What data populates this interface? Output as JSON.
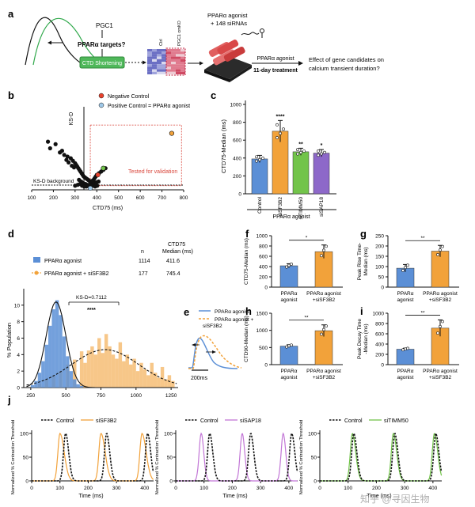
{
  "panel_letters": {
    "a": "a",
    "b": "b",
    "c": "c",
    "d": "d",
    "e": "e",
    "f": "f",
    "g": "g",
    "h": "h",
    "i": "i",
    "j": "j"
  },
  "panel_a": {
    "pgc1": "PGC1",
    "ppar_targets": "PPARα targets?",
    "ctd_shortening": "CTD Shortening",
    "heatmap_label_ctrl": "Ctrl",
    "heatmap_label_ko": "PGC1 cmKO",
    "agonist_sirna_line1": "PPARα agonist",
    "agonist_sirna_line2": "+ 148 siRNAs",
    "treatment_top": "PPARα agonist",
    "treatment_bottom": "11-day treatment",
    "question_line1": "Effect of gene candidates on",
    "question_line2": "calcium transient duration?"
  },
  "panel_b": {
    "legend_neg": "Negative Control",
    "legend_pos": "Positive Control = PPARα agonist",
    "ylabel": "KS-D",
    "xlabel": "CTD75 (ms)",
    "background_label": "KS-D background",
    "validation_label": "Tested for validation",
    "colors": {
      "neg": "#e8412c",
      "pos": "#9fc8e8",
      "highlight_orange": "#f2a23a",
      "highlight_green": "#72c44a"
    },
    "chart_data": {
      "type": "scatter",
      "title": "",
      "xlabel": "CTD75 (ms)",
      "ylabel": "KS-D",
      "xlim": [
        100,
        800
      ],
      "ylim": [
        0,
        1
      ],
      "x_ticks": [
        "100",
        "200",
        "300",
        "400",
        "500",
        "600",
        "700",
        "800"
      ],
      "points_x": [
        175,
        210,
        185,
        230,
        250,
        265,
        280,
        290,
        300,
        305,
        310,
        315,
        320,
        325,
        330,
        335,
        340,
        345,
        350,
        355,
        360,
        365,
        370,
        375,
        380,
        385,
        390,
        395,
        400,
        410,
        420,
        430,
        440,
        270,
        285,
        295,
        240,
        260,
        318,
        328,
        338,
        348,
        358,
        368,
        378,
        388,
        398,
        408,
        300,
        312,
        322,
        332,
        342,
        352,
        362,
        372,
        382,
        392,
        402
      ],
      "points_y": [
        0.58,
        0.55,
        0.5,
        0.45,
        0.42,
        0.4,
        0.38,
        0.35,
        0.32,
        0.3,
        0.28,
        0.26,
        0.24,
        0.22,
        0.2,
        0.18,
        0.16,
        0.15,
        0.14,
        0.13,
        0.12,
        0.11,
        0.1,
        0.1,
        0.11,
        0.12,
        0.14,
        0.16,
        0.18,
        0.2,
        0.22,
        0.24,
        0.26,
        0.33,
        0.29,
        0.27,
        0.47,
        0.36,
        0.12,
        0.1,
        0.08,
        0.07,
        0.06,
        0.06,
        0.07,
        0.08,
        0.09,
        0.1,
        0.05,
        0.06,
        0.07,
        0.05,
        0.04,
        0.04,
        0.05,
        0.06,
        0.05,
        0.04,
        0.05
      ],
      "negative_control": {
        "x": 405,
        "y": 0.18
      },
      "positive_control": {
        "x": 370,
        "y": 0.02
      },
      "highlighted": [
        {
          "x": 745,
          "y": 0.68,
          "color": "orange"
        },
        {
          "x": 430,
          "y": 0.26,
          "color": "green"
        }
      ],
      "background_threshold_y": 0.05,
      "validation_box": {
        "x_from": 370,
        "x_to": 790,
        "y_from": 0.05,
        "y_to": 0.78
      }
    }
  },
  "panel_c": {
    "ylabel": "CTD75-Median (ms)",
    "group_label": "PPARα agonist",
    "chart_data": {
      "type": "bar",
      "categories": [
        "Control",
        "siSF3B2",
        "siTIMM50",
        "siSAP18"
      ],
      "values": [
        390,
        700,
        470,
        455
      ],
      "errors": [
        40,
        120,
        40,
        40
      ],
      "colors": [
        "#5b8fd6",
        "#f2a23a",
        "#72c44a",
        "#8d68c9"
      ],
      "significance": [
        "",
        "****",
        "**",
        "*"
      ],
      "ylim": [
        0,
        1000
      ],
      "y_ticks": [
        "0",
        "200",
        "400",
        "600",
        "800",
        "1000"
      ]
    }
  },
  "panel_d": {
    "header_n": "n",
    "header_ctd": "CTD75",
    "header_median": "Median (ms)",
    "rows": [
      {
        "label": "PPARα agonist",
        "n": "1114",
        "median": "411.6"
      },
      {
        "label": "PPARα agonist + siSF3B2",
        "n": "177",
        "median": "745.4"
      }
    ],
    "ks_label": "KS-D=0.7112",
    "stars": "****",
    "ylabel": "% Population",
    "chart_data": {
      "type": "bar",
      "title": "",
      "xlabel": "",
      "ylabel": "% Population",
      "xlim": [
        200,
        1300
      ],
      "ylim": [
        0,
        12
      ],
      "x_ticks": [
        "250",
        "500",
        "750",
        "1000",
        "1250"
      ],
      "y_ticks": [
        "0",
        "2",
        "4",
        "6",
        "8",
        "10"
      ],
      "series": [
        {
          "name": "PPARα agonist",
          "color": "#5b8fd6",
          "bin_width": 25,
          "x": [
            250,
            275,
            300,
            325,
            350,
            375,
            400,
            425,
            450,
            475,
            500,
            525,
            550,
            575,
            600
          ],
          "values": [
            0.3,
            0.8,
            1.8,
            3.2,
            5.2,
            7.5,
            9.5,
            10.6,
            8.8,
            6.2,
            3.8,
            2.0,
            1.0,
            0.4,
            0.2
          ]
        },
        {
          "name": "PPARα agonist + siSF3B2",
          "color": "#f2a23a",
          "bin_width": 25,
          "x": [
            300,
            350,
            400,
            450,
            500,
            550,
            600,
            625,
            650,
            675,
            700,
            725,
            750,
            775,
            800,
            825,
            850,
            875,
            900,
            925,
            950,
            975,
            1000,
            1025,
            1050,
            1075,
            1100,
            1125,
            1150,
            1175,
            1200,
            1225,
            1250
          ],
          "values": [
            0.5,
            1.0,
            1.5,
            2.0,
            2.8,
            3.4,
            4.4,
            3.0,
            4.5,
            5.0,
            4.0,
            6.0,
            4.2,
            6.5,
            5.0,
            4.0,
            3.5,
            5.5,
            3.2,
            4.0,
            2.8,
            3.5,
            2.0,
            3.0,
            2.2,
            1.5,
            3.0,
            1.8,
            1.2,
            2.5,
            1.0,
            1.5,
            0.8
          ]
        }
      ]
    }
  },
  "panel_e": {
    "legend_agonist": "PPARα agonist",
    "legend_sf3b2_line1": "PPARα agonist +",
    "legend_sf3b2_line2": "siSF3B2",
    "scale": "200ms"
  },
  "small_bars": [
    {
      "id": "f",
      "ylabel": "CTD75-Median (ms)",
      "y_ticks": [
        "0",
        "200",
        "400",
        "600",
        "800",
        "1000"
      ],
      "ymax": 1000,
      "values": [
        415,
        690
      ],
      "errors": [
        40,
        130
      ],
      "stars": "*"
    },
    {
      "id": "g",
      "ylabel_line1": "Peak Rise Time-",
      "ylabel_line2": "Median (ms)",
      "y_ticks": [
        "0",
        "50",
        "100",
        "150",
        "200",
        "250"
      ],
      "ymax": 250,
      "values": [
        92,
        175
      ],
      "errors": [
        18,
        28
      ],
      "stars": "**"
    },
    {
      "id": "h",
      "ylabel": "CTD90-Median (ms)",
      "y_ticks": [
        "0",
        "500",
        "1000",
        "1500"
      ],
      "ymax": 1500,
      "values": [
        540,
        990
      ],
      "errors": [
        40,
        170
      ],
      "stars": "**"
    },
    {
      "id": "i",
      "ylabel_line1": "Peak Decay Time",
      "ylabel_line2": "-Median (ms)",
      "y_ticks": [
        "0",
        "200",
        "400",
        "600",
        "800",
        "1000"
      ],
      "ymax": 1000,
      "values": [
        300,
        710
      ],
      "errors": [
        20,
        160
      ],
      "stars": "**"
    }
  ],
  "small_bar_categories": {
    "cat1_line1": "PPARα",
    "cat1_line2": "agonist",
    "cat2_line1": "PPARα agonist",
    "cat2_line2": "+siSF3B2"
  },
  "panel_j": {
    "ylabel": "Normalized % Contraction Threshold",
    "xlabel": "Time (ms)",
    "x_ticks": [
      "0",
      "100",
      "200",
      "300",
      "400"
    ],
    "y_ticks": [
      "0",
      "50",
      "100"
    ],
    "plots": [
      {
        "control": "Control",
        "treatment": "siSF3B2",
        "color": "#f2a23a"
      },
      {
        "control": "Control",
        "treatment": "siSAP18",
        "color": "#c276d6"
      },
      {
        "control": "Control",
        "treatment": "siTIMM50",
        "color": "#72c44a"
      }
    ]
  },
  "watermark": "知乎 @寻因生物"
}
